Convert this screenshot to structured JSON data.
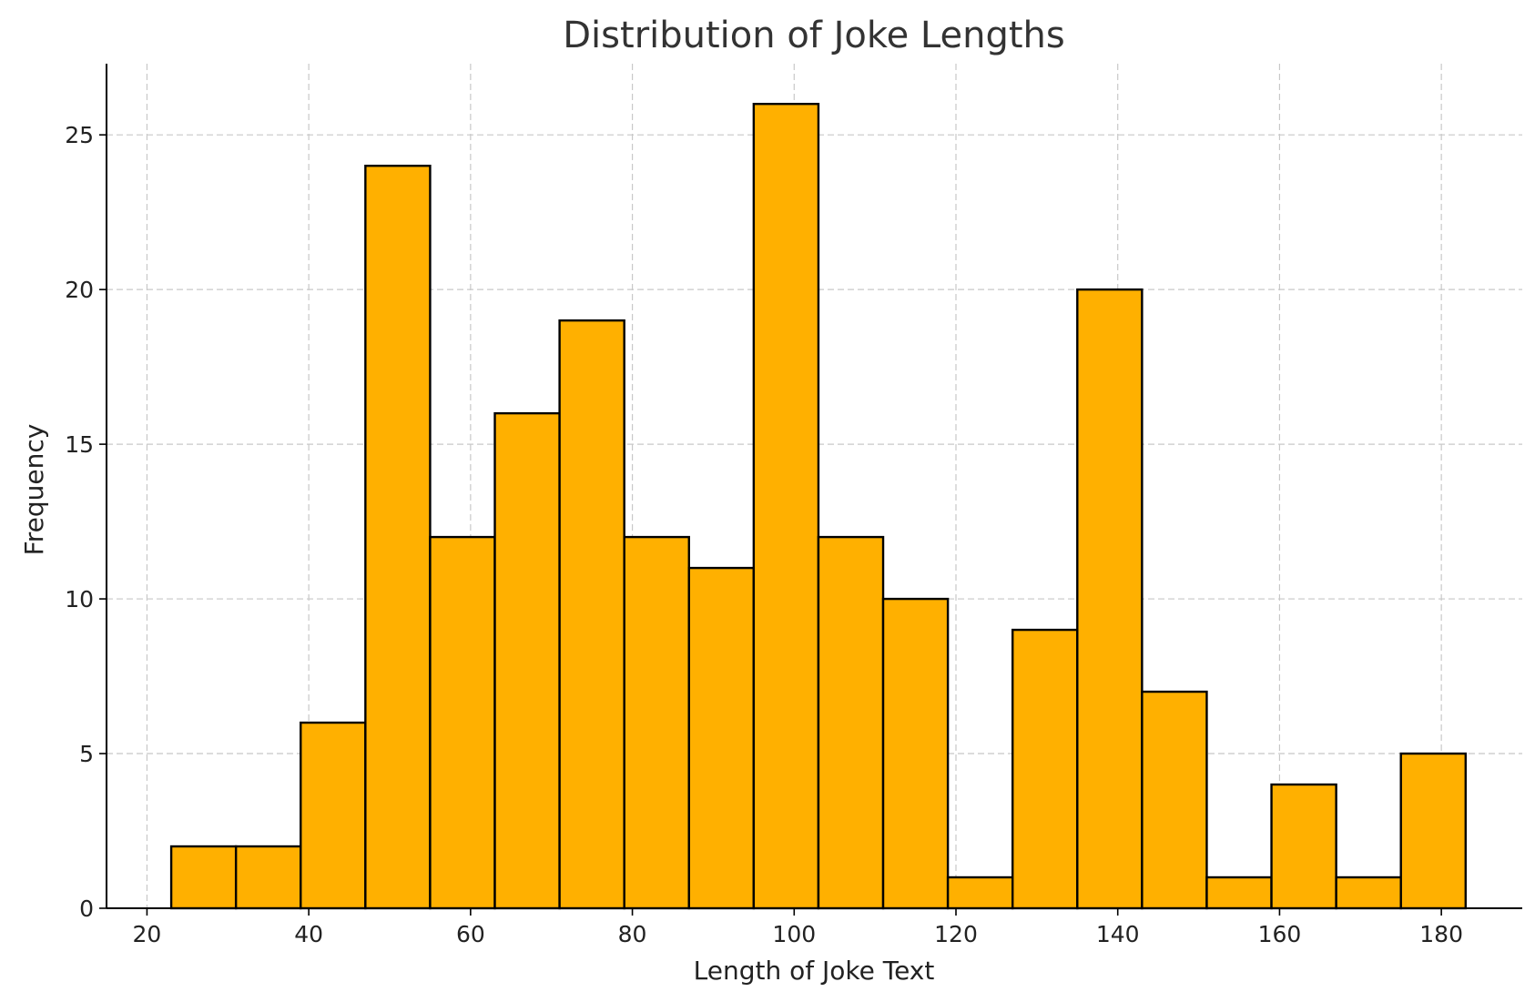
{
  "chart_data": {
    "type": "bar",
    "title": "Distribution of Joke Lengths",
    "xlabel": "Length of Joke Text",
    "ylabel": "Frequency",
    "bar_color": "#FFB000",
    "edge_color": "#000000",
    "grid": true,
    "xlim": [
      15,
      190
    ],
    "ylim": [
      0,
      27.3
    ],
    "xticks": [
      20,
      40,
      60,
      80,
      100,
      120,
      140,
      160,
      180
    ],
    "yticks": [
      0,
      5,
      10,
      15,
      20,
      25
    ],
    "bins": [
      {
        "x0": 23.0,
        "x1": 31.0,
        "count": 2
      },
      {
        "x0": 31.0,
        "x1": 39.0,
        "count": 2
      },
      {
        "x0": 39.0,
        "x1": 47.0,
        "count": 6
      },
      {
        "x0": 47.0,
        "x1": 55.0,
        "count": 24
      },
      {
        "x0": 55.0,
        "x1": 63.0,
        "count": 12
      },
      {
        "x0": 63.0,
        "x1": 71.0,
        "count": 16
      },
      {
        "x0": 71.0,
        "x1": 79.0,
        "count": 19
      },
      {
        "x0": 79.0,
        "x1": 87.0,
        "count": 12
      },
      {
        "x0": 87.0,
        "x1": 95.0,
        "count": 11
      },
      {
        "x0": 95.0,
        "x1": 103.0,
        "count": 26
      },
      {
        "x0": 103.0,
        "x1": 111.0,
        "count": 12
      },
      {
        "x0": 111.0,
        "x1": 119.0,
        "count": 10
      },
      {
        "x0": 119.0,
        "x1": 127.0,
        "count": 1
      },
      {
        "x0": 127.0,
        "x1": 135.0,
        "count": 9
      },
      {
        "x0": 135.0,
        "x1": 143.0,
        "count": 20
      },
      {
        "x0": 143.0,
        "x1": 151.0,
        "count": 7
      },
      {
        "x0": 151.0,
        "x1": 159.0,
        "count": 1
      },
      {
        "x0": 159.0,
        "x1": 167.0,
        "count": 4
      },
      {
        "x0": 167.0,
        "x1": 175.0,
        "count": 1
      },
      {
        "x0": 175.0,
        "x1": 183.0,
        "count": 5
      }
    ]
  }
}
